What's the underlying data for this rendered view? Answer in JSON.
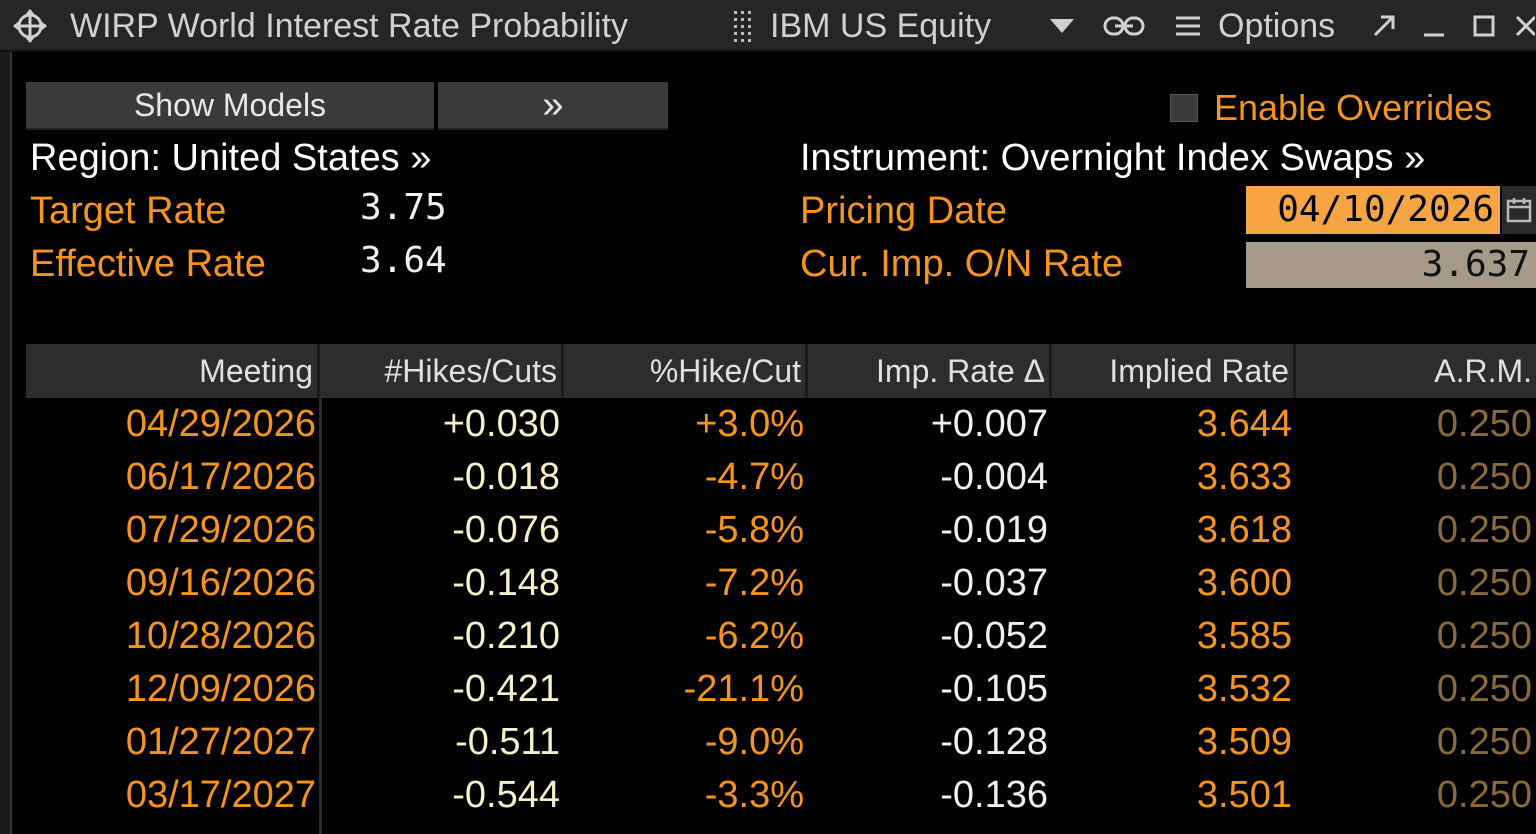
{
  "titlebar": {
    "title": "WIRP World Interest Rate Probability",
    "security": "IBM US Equity",
    "options_label": "Options"
  },
  "controls": {
    "show_models_label": "Show Models",
    "expand_label": "»",
    "enable_overrides_label": "Enable Overrides"
  },
  "settings": {
    "region_label": "Region: United States »",
    "instrument_label": "Instrument: Overnight Index Swaps »",
    "target_rate_label": "Target Rate",
    "target_rate_value": "3.75",
    "effective_rate_label": "Effective Rate",
    "effective_rate_value": "3.64",
    "pricing_date_label": "Pricing Date",
    "pricing_date_value": "04/10/2026",
    "cur_imp_rate_label": "Cur. Imp. O/N Rate",
    "cur_imp_rate_value": "3.637"
  },
  "table": {
    "columns": [
      "Meeting",
      "#Hikes/Cuts",
      "%Hike/Cut",
      "Imp. Rate Δ",
      "Implied Rate",
      "A.R.M."
    ],
    "rows": [
      [
        "04/29/2026",
        "+0.030",
        "+3.0%",
        "+0.007",
        "3.644",
        "0.250"
      ],
      [
        "06/17/2026",
        "-0.018",
        "-4.7%",
        "-0.004",
        "3.633",
        "0.250"
      ],
      [
        "07/29/2026",
        "-0.076",
        "-5.8%",
        "-0.019",
        "3.618",
        "0.250"
      ],
      [
        "09/16/2026",
        "-0.148",
        "-7.2%",
        "-0.037",
        "3.600",
        "0.250"
      ],
      [
        "10/28/2026",
        "-0.210",
        "-6.2%",
        "-0.052",
        "3.585",
        "0.250"
      ],
      [
        "12/09/2026",
        "-0.421",
        "-21.1%",
        "-0.105",
        "3.532",
        "0.250"
      ],
      [
        "01/27/2027",
        "-0.511",
        "-9.0%",
        "-0.128",
        "3.509",
        "0.250"
      ],
      [
        "03/17/2027",
        "-0.544",
        "-3.3%",
        "-0.136",
        "3.501",
        "0.250"
      ]
    ]
  },
  "colors": {
    "accent_orange": "#f7941d",
    "date_field_bg": "#f7a544",
    "rate_field_bg": "#a59a88",
    "arm_text": "#8a6a3a"
  }
}
